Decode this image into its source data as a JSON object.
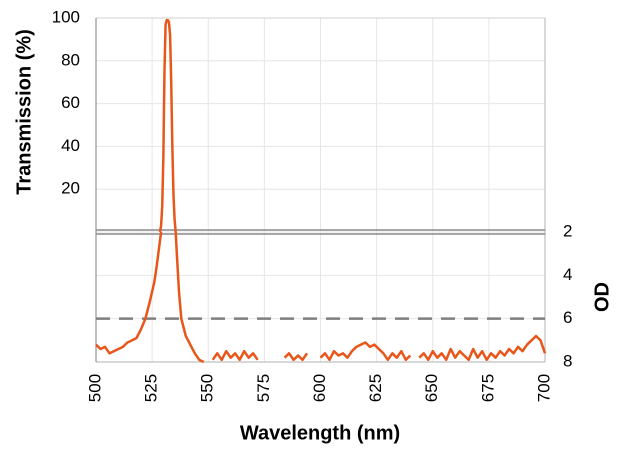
{
  "chart_data": {
    "type": "line",
    "xlabel": "Wavelength (nm)",
    "ylabel": "Transmission (%)",
    "y2label": "OD",
    "xlim": [
      500,
      700
    ],
    "xticks": [
      500,
      525,
      550,
      575,
      600,
      625,
      650,
      675,
      700
    ],
    "ylim": [
      0,
      100
    ],
    "yticks": [
      20,
      40,
      60,
      80,
      100
    ],
    "y2lim": [
      8,
      2
    ],
    "y2ticks": [
      2,
      4,
      6,
      8
    ],
    "grid": true,
    "reference_lines": [
      {
        "axis": "y2",
        "value": 6,
        "style": "dashed",
        "color": "#7f7f7f"
      }
    ],
    "series": [
      {
        "color": "#e8561a",
        "axis": "y",
        "x": [
          528.5,
          529,
          529.5,
          530,
          530.5,
          531,
          531.5,
          532,
          532.5,
          533,
          533.5,
          534,
          534.5,
          535,
          535.5
        ],
        "values": [
          0,
          3,
          12,
          35,
          75,
          97,
          99,
          99,
          98,
          92,
          70,
          40,
          18,
          6,
          0
        ]
      },
      {
        "color": "#e8561a",
        "axis": "y2",
        "x": [
          500,
          502,
          504,
          506,
          508,
          510,
          512,
          514,
          516,
          518,
          520,
          522,
          524,
          526,
          527,
          528,
          529,
          532,
          535.5,
          536,
          537,
          538,
          540,
          542,
          544,
          546,
          548,
          550,
          552,
          554,
          556,
          558,
          560,
          562,
          564,
          566,
          568,
          570,
          572,
          574,
          576,
          578,
          580,
          582,
          584,
          586,
          588,
          590,
          592,
          594,
          596,
          598,
          600,
          602,
          604,
          606,
          608,
          610,
          612,
          614,
          616,
          618,
          620,
          622,
          624,
          626,
          628,
          630,
          632,
          634,
          636,
          638,
          640,
          642,
          644,
          646,
          648,
          650,
          652,
          654,
          656,
          658,
          660,
          662,
          664,
          666,
          668,
          670,
          672,
          674,
          676,
          678,
          680,
          682,
          684,
          686,
          688,
          690,
          692,
          694,
          696,
          698,
          700
        ],
        "values": [
          7.2,
          7.4,
          7.3,
          7.6,
          7.5,
          7.4,
          7.3,
          7.1,
          7.0,
          6.9,
          6.5,
          6.0,
          5.2,
          4.3,
          3.6,
          2.8,
          2.0,
          null,
          2.0,
          3.0,
          4.8,
          6.0,
          6.8,
          7.2,
          7.6,
          7.9,
          8.0,
          null,
          7.9,
          7.6,
          7.9,
          7.5,
          7.8,
          7.6,
          7.9,
          7.5,
          7.8,
          7.6,
          7.9,
          null,
          null,
          null,
          null,
          null,
          7.8,
          7.6,
          7.9,
          7.7,
          7.9,
          7.6,
          null,
          null,
          7.8,
          7.6,
          7.9,
          7.5,
          7.7,
          7.6,
          7.8,
          7.5,
          7.3,
          7.2,
          7.1,
          7.3,
          7.2,
          7.4,
          7.6,
          7.9,
          7.6,
          7.8,
          7.5,
          7.9,
          7.7,
          null,
          7.8,
          7.6,
          7.9,
          7.5,
          7.8,
          7.6,
          7.9,
          7.4,
          7.8,
          7.5,
          7.7,
          7.9,
          7.4,
          7.8,
          7.5,
          7.9,
          7.6,
          7.8,
          7.5,
          7.7,
          7.4,
          7.6,
          7.3,
          7.5,
          7.2,
          7.0,
          6.8,
          7.0,
          7.6
        ]
      }
    ]
  }
}
